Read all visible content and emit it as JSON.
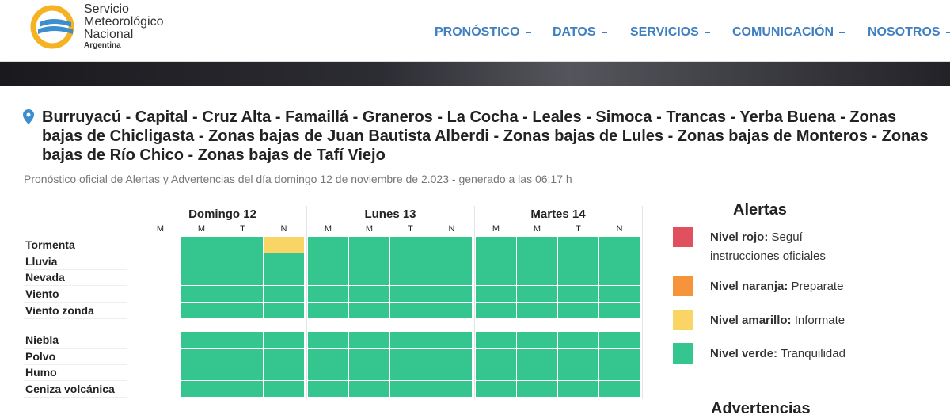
{
  "header": {
    "logo": {
      "line1": "Servicio",
      "line2": "Meteorológico",
      "line3": "Nacional",
      "line4": "Argentina"
    },
    "nav": [
      "PRONÓSTICO",
      "DATOS",
      "SERVICIOS",
      "COMUNICACIÓN",
      "NOSOTROS"
    ]
  },
  "location": "Burruyacú - Capital - Cruz Alta - Famaillá - Graneros - La Cocha - Leales - Simoca - Trancas - Yerba Buena - Zonas bajas de Chicligasta - Zonas bajas de Juan Bautista Alberdi - Zonas bajas de Lules - Zonas bajas de Monteros - Zonas bajas de Río Chico - Zonas bajas de Tafí Viejo",
  "subtitle": "Pronóstico oficial de Alertas y Advertencias del día domingo 12 de noviembre de 2.023 - generado a las 06:17 h",
  "table": {
    "days": [
      "Domingo 12",
      "Lunes 13",
      "Martes 14"
    ],
    "periods": [
      "M",
      "M",
      "T",
      "N"
    ],
    "groups": [
      [
        {
          "label": "Tormenta",
          "cells": [
            null,
            "#35c58e",
            "#35c58e",
            "#f9d565",
            "#35c58e",
            "#35c58e",
            "#35c58e",
            "#35c58e",
            "#35c58e",
            "#35c58e",
            "#35c58e",
            "#35c58e"
          ]
        },
        {
          "label": "Lluvia",
          "cells": [
            null,
            "#35c58e",
            "#35c58e",
            "#35c58e",
            "#35c58e",
            "#35c58e",
            "#35c58e",
            "#35c58e",
            "#35c58e",
            "#35c58e",
            "#35c58e",
            "#35c58e"
          ]
        },
        {
          "label": "Nevada",
          "cells": [
            null,
            "#35c58e",
            "#35c58e",
            "#35c58e",
            "#35c58e",
            "#35c58e",
            "#35c58e",
            "#35c58e",
            "#35c58e",
            "#35c58e",
            "#35c58e",
            "#35c58e"
          ]
        },
        {
          "label": "Viento",
          "cells": [
            null,
            "#35c58e",
            "#35c58e",
            "#35c58e",
            "#35c58e",
            "#35c58e",
            "#35c58e",
            "#35c58e",
            "#35c58e",
            "#35c58e",
            "#35c58e",
            "#35c58e"
          ]
        },
        {
          "label": "Viento zonda",
          "cells": [
            null,
            "#35c58e",
            "#35c58e",
            "#35c58e",
            "#35c58e",
            "#35c58e",
            "#35c58e",
            "#35c58e",
            "#35c58e",
            "#35c58e",
            "#35c58e",
            "#35c58e"
          ]
        }
      ],
      [
        {
          "label": "Niebla",
          "cells": [
            null,
            "#35c58e",
            "#35c58e",
            "#35c58e",
            "#35c58e",
            "#35c58e",
            "#35c58e",
            "#35c58e",
            "#35c58e",
            "#35c58e",
            "#35c58e",
            "#35c58e"
          ]
        },
        {
          "label": "Polvo",
          "cells": [
            null,
            "#35c58e",
            "#35c58e",
            "#35c58e",
            "#35c58e",
            "#35c58e",
            "#35c58e",
            "#35c58e",
            "#35c58e",
            "#35c58e",
            "#35c58e",
            "#35c58e"
          ]
        },
        {
          "label": "Humo",
          "cells": [
            null,
            "#35c58e",
            "#35c58e",
            "#35c58e",
            "#35c58e",
            "#35c58e",
            "#35c58e",
            "#35c58e",
            "#35c58e",
            "#35c58e",
            "#35c58e",
            "#35c58e"
          ]
        },
        {
          "label": "Ceniza volcánica",
          "cells": [
            null,
            "#35c58e",
            "#35c58e",
            "#35c58e",
            "#35c58e",
            "#35c58e",
            "#35c58e",
            "#35c58e",
            "#35c58e",
            "#35c58e",
            "#35c58e",
            "#35c58e"
          ]
        }
      ]
    ]
  },
  "legend": {
    "title": "Alertas",
    "items": [
      {
        "level": "Nivel rojo:",
        "text": "Seguí instrucciones oficiales",
        "color": "#e0505f"
      },
      {
        "level": "Nivel naranja:",
        "text": "Preparate",
        "color": "#f5943b"
      },
      {
        "level": "Nivel amarillo:",
        "text": "Informate",
        "color": "#f9d565"
      },
      {
        "level": "Nivel verde:",
        "text": "Tranquilidad",
        "color": "#35c58e"
      }
    ],
    "advertencias": "Advertencias"
  }
}
